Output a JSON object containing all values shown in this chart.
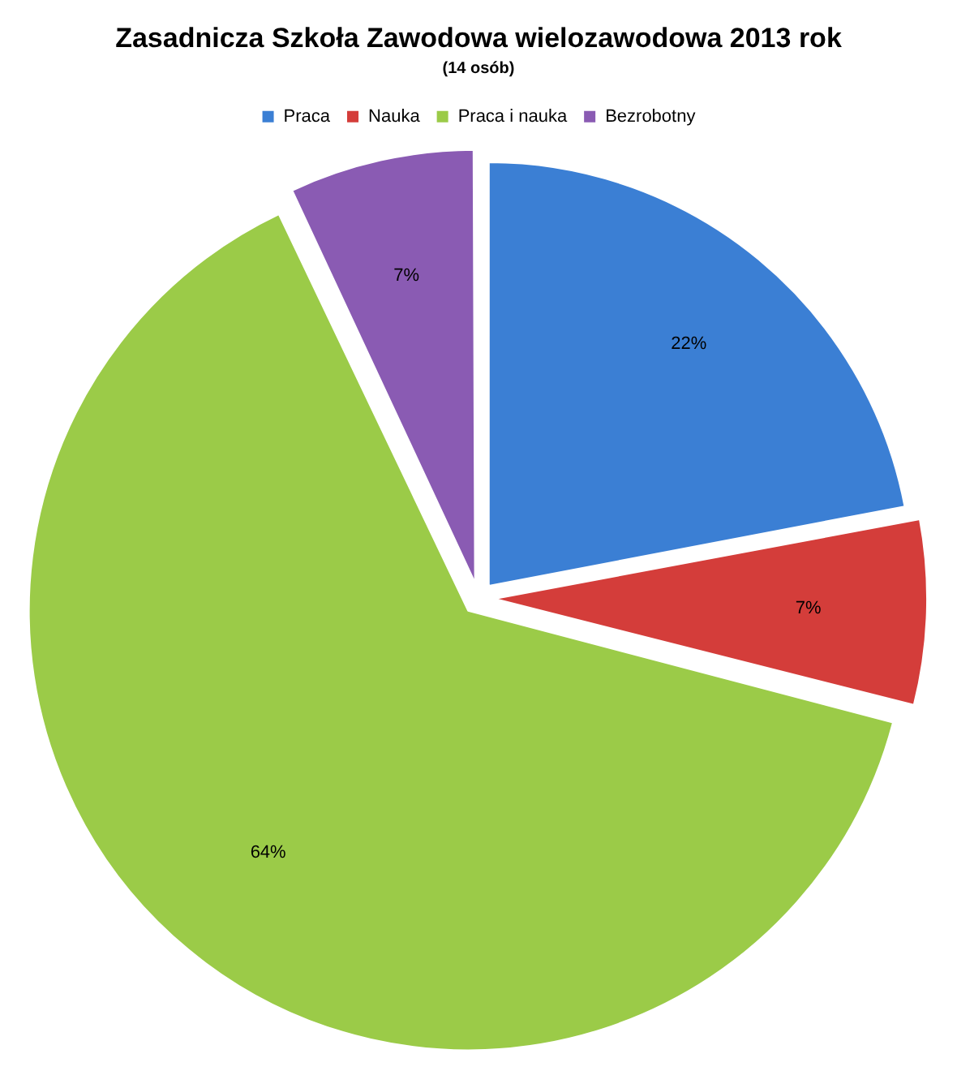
{
  "chart_data": {
    "type": "pie",
    "title": "Zasadnicza Szkoła Zawodowa wielozawodowa 2013 rok",
    "subtitle": "(14 osób)",
    "categories": [
      "Praca",
      "Nauka",
      "Praca i nauka",
      "Bezrobotny"
    ],
    "values": [
      22,
      7,
      64,
      7
    ],
    "colors": [
      "#3b7fd4",
      "#d43d3a",
      "#9bcb48",
      "#8a5bb3"
    ],
    "value_labels": [
      "22%",
      "7%",
      "64%",
      "7%"
    ],
    "legend": "top"
  }
}
